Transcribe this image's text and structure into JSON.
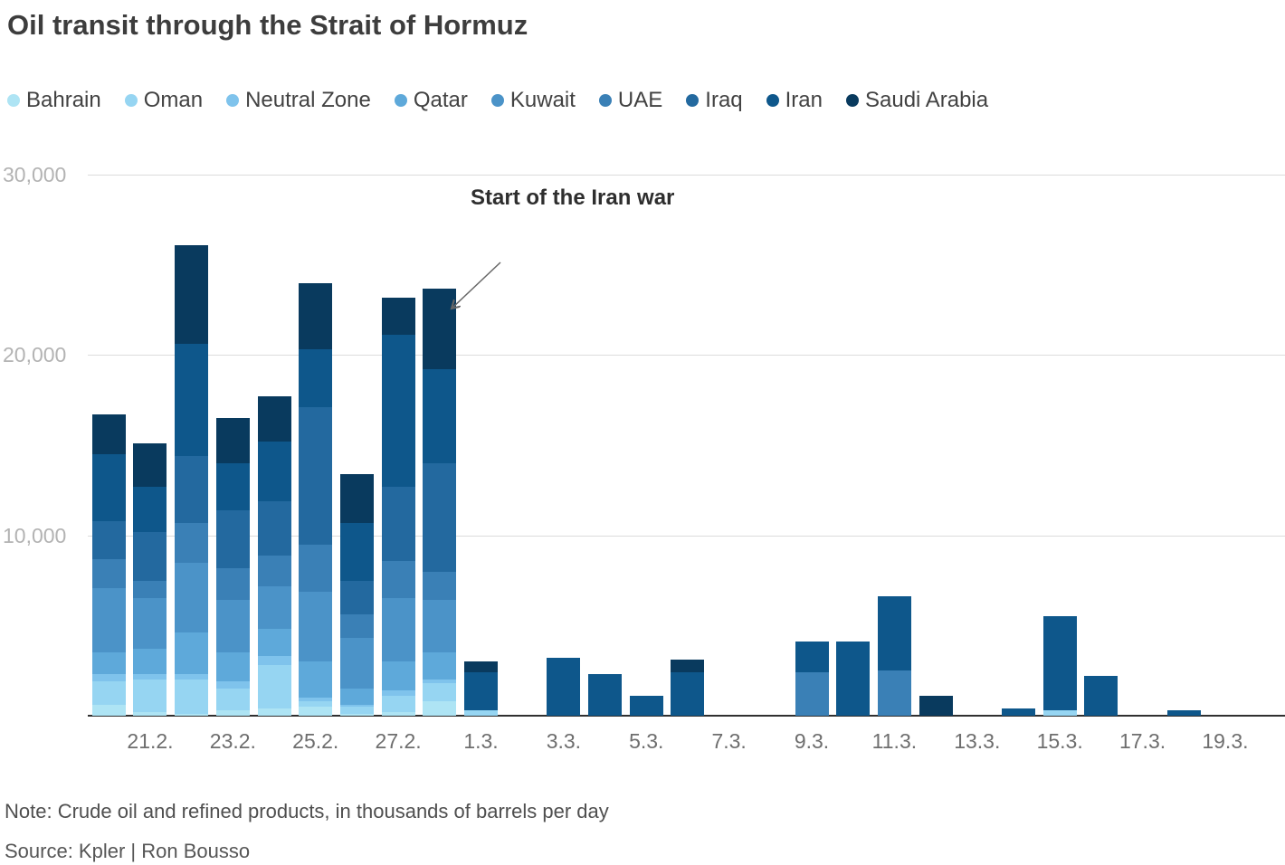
{
  "title": "Oil transit through the Strait of Hormuz",
  "annotation": {
    "text": "Start of the Iran war"
  },
  "note": "Note: Crude oil and refined products, in thousands of barrels per day",
  "source": "Source: Kpler | Ron Bousso",
  "legend": [
    {
      "label": "Bahrain",
      "color": "#aee4f4"
    },
    {
      "label": "Oman",
      "color": "#96d5f2"
    },
    {
      "label": "Neutral Zone",
      "color": "#7fc3ec"
    },
    {
      "label": "Qatar",
      "color": "#5ea9da"
    },
    {
      "label": "Kuwait",
      "color": "#4b93c8"
    },
    {
      "label": "UAE",
      "color": "#3a80b6"
    },
    {
      "label": "Iraq",
      "color": "#23699f"
    },
    {
      "label": "Iran",
      "color": "#0e578b"
    },
    {
      "label": "Saudi Arabia",
      "color": "#093a5e"
    }
  ],
  "chart_data": {
    "type": "bar",
    "stacked": true,
    "title": "Oil transit through the Strait of Hormuz",
    "unit": "thousands of barrels per day",
    "grid": true,
    "legend_position": "top",
    "ylim": [
      0,
      30000
    ],
    "yticks": [
      10000,
      20000,
      30000
    ],
    "ytick_labels": [
      "10,000",
      "20,000",
      "30,000"
    ],
    "categories": [
      "20.2.",
      "21.2.",
      "22.2.",
      "23.2.",
      "24.2.",
      "25.2.",
      "26.2.",
      "27.2.",
      "28.2.",
      "1.3.",
      "2.3.",
      "3.3.",
      "4.3.",
      "5.3.",
      "6.3.",
      "7.3.",
      "8.3.",
      "9.3.",
      "10.3.",
      "11.3.",
      "12.3.",
      "13.3.",
      "14.3.",
      "15.3.",
      "16.3.",
      "17.3.",
      "18.3.",
      "19.3."
    ],
    "x_tick_labels": [
      "21.2.",
      "23.2.",
      "25.2.",
      "27.2.",
      "1.3.",
      "3.3.",
      "5.3.",
      "7.3.",
      "9.3.",
      "11.3.",
      "13.3.",
      "15.3.",
      "17.3.",
      "19.3."
    ],
    "series": [
      {
        "name": "Bahrain",
        "color": "#aee4f4",
        "values": [
          600,
          200,
          100,
          300,
          400,
          500,
          100,
          200,
          800,
          0,
          0,
          0,
          0,
          0,
          0,
          0,
          0,
          0,
          0,
          0,
          0,
          0,
          0,
          0,
          0,
          0,
          0,
          0
        ]
      },
      {
        "name": "Oman",
        "color": "#96d5f2",
        "values": [
          1300,
          1800,
          1900,
          1200,
          2400,
          300,
          400,
          900,
          1000,
          300,
          0,
          0,
          0,
          0,
          0,
          0,
          0,
          0,
          0,
          0,
          0,
          0,
          0,
          300,
          0,
          0,
          0,
          0
        ]
      },
      {
        "name": "Neutral Zone",
        "color": "#7fc3ec",
        "values": [
          400,
          300,
          300,
          400,
          500,
          200,
          100,
          300,
          200,
          0,
          0,
          0,
          0,
          0,
          0,
          0,
          0,
          0,
          0,
          0,
          0,
          0,
          0,
          0,
          0,
          0,
          0,
          0
        ]
      },
      {
        "name": "Qatar",
        "color": "#5ea9da",
        "values": [
          1200,
          1400,
          2300,
          1600,
          1500,
          2000,
          900,
          1600,
          1500,
          0,
          0,
          0,
          0,
          0,
          0,
          0,
          0,
          0,
          0,
          0,
          0,
          0,
          0,
          0,
          0,
          0,
          0,
          0
        ]
      },
      {
        "name": "Kuwait",
        "color": "#4b93c8",
        "values": [
          3600,
          2800,
          3900,
          2900,
          2400,
          3900,
          2800,
          3500,
          2900,
          0,
          0,
          0,
          0,
          0,
          0,
          0,
          0,
          0,
          0,
          0,
          0,
          0,
          0,
          0,
          0,
          0,
          0,
          0
        ]
      },
      {
        "name": "UAE",
        "color": "#3a80b6",
        "values": [
          1600,
          1000,
          2200,
          1800,
          1700,
          2600,
          1300,
          2100,
          1600,
          0,
          0,
          0,
          0,
          0,
          0,
          0,
          0,
          2400,
          0,
          2500,
          0,
          0,
          0,
          0,
          0,
          0,
          0,
          0
        ]
      },
      {
        "name": "Iraq",
        "color": "#23699f",
        "values": [
          2100,
          2700,
          3700,
          3200,
          3000,
          7600,
          1900,
          4100,
          6000,
          0,
          0,
          0,
          0,
          0,
          0,
          0,
          0,
          0,
          0,
          0,
          0,
          0,
          0,
          0,
          0,
          0,
          0,
          0
        ]
      },
      {
        "name": "Iran",
        "color": "#0e578b",
        "values": [
          3700,
          2500,
          6200,
          2600,
          3300,
          3200,
          3200,
          8400,
          5200,
          2100,
          0,
          3200,
          2300,
          1100,
          2400,
          0,
          0,
          1700,
          4100,
          4100,
          0,
          0,
          400,
          5200,
          2200,
          0,
          300,
          0
        ]
      },
      {
        "name": "Saudi Arabia",
        "color": "#093a5e",
        "values": [
          2200,
          2400,
          5500,
          2500,
          2500,
          3700,
          2700,
          2100,
          4500,
          600,
          0,
          0,
          0,
          0,
          700,
          0,
          0,
          0,
          0,
          0,
          1100,
          0,
          0,
          0,
          0,
          0,
          0,
          0
        ]
      }
    ],
    "annotation": {
      "text": "Start of the Iran war",
      "points_to_category": "28.2."
    }
  }
}
